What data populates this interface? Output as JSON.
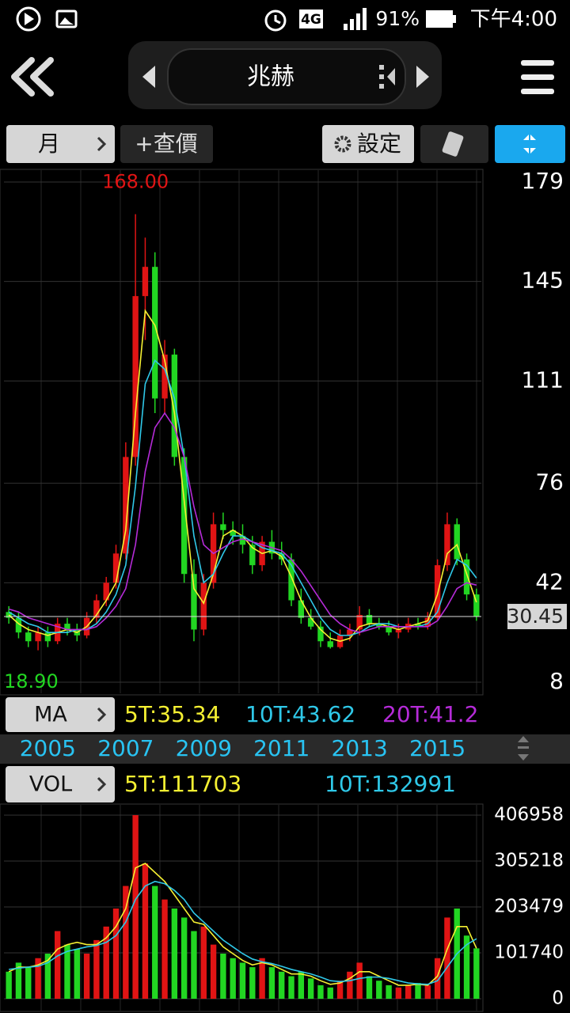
{
  "status_bar": {
    "network": "4G",
    "battery": "91%",
    "time": "下午4:00"
  },
  "header": {
    "title": "兆赫"
  },
  "toolbar": {
    "period": "月",
    "query": "+查價",
    "settings": "設定"
  },
  "chart_data": [
    {
      "type": "candlestick",
      "categories": [
        null,
        null,
        null,
        null,
        null,
        null,
        null,
        null,
        null,
        null,
        null,
        null,
        null,
        null,
        null,
        null,
        null,
        null,
        null,
        null,
        null,
        null,
        null,
        null,
        null,
        null,
        null,
        null,
        null,
        null,
        null,
        null,
        null,
        null,
        null,
        null,
        null,
        null,
        null,
        null,
        null,
        null,
        null,
        null,
        null,
        null,
        null,
        null,
        null
      ],
      "open": [
        32,
        30,
        25,
        22,
        25,
        22,
        28,
        26,
        24,
        30,
        36,
        42,
        52,
        85,
        140,
        150,
        105,
        120,
        85,
        45,
        26,
        42,
        62,
        60,
        58,
        55,
        48,
        56,
        52,
        50,
        36,
        30,
        27,
        22,
        20,
        24,
        26,
        31,
        28,
        27,
        25,
        26,
        28,
        27,
        30,
        48,
        62,
        50,
        38
      ],
      "high": [
        34,
        32,
        27,
        27,
        27,
        30,
        30,
        28,
        32,
        38,
        44,
        55,
        90,
        168,
        160,
        155,
        125,
        122,
        88,
        50,
        45,
        66,
        66,
        63,
        62,
        58,
        58,
        60,
        56,
        52,
        40,
        33,
        29,
        25,
        26,
        28,
        34,
        33,
        30,
        29,
        28,
        30,
        30,
        32,
        50,
        66,
        64,
        52,
        40
      ],
      "low": [
        28,
        23,
        20,
        18.9,
        20,
        21,
        24,
        22,
        23,
        28,
        34,
        40,
        50,
        82,
        125,
        100,
        100,
        82,
        42,
        22,
        24,
        40,
        57,
        55,
        52,
        45,
        46,
        50,
        48,
        34,
        28,
        26,
        20,
        19.5,
        19.5,
        22,
        24,
        27,
        26,
        24,
        23,
        25,
        26,
        26,
        29,
        46,
        48,
        36,
        29
      ],
      "close": [
        30,
        25,
        22,
        25,
        22,
        28,
        26,
        24,
        30,
        36,
        42,
        52,
        85,
        140,
        150,
        105,
        120,
        85,
        45,
        26,
        42,
        62,
        60,
        58,
        55,
        48,
        56,
        52,
        50,
        36,
        30,
        27,
        22,
        20,
        24,
        26,
        31,
        28,
        27,
        25,
        26,
        28,
        27,
        30,
        48,
        62,
        50,
        38,
        30.45
      ],
      "indicator": "MA",
      "series": [
        {
          "name": "5T:35.34",
          "color": "#f5f032",
          "values": [
            31,
            28,
            26,
            25,
            24,
            25,
            26,
            25,
            27,
            31,
            36,
            42,
            60,
            100,
            135,
            130,
            118,
            100,
            70,
            40,
            35,
            45,
            58,
            60,
            58,
            54,
            52,
            53,
            51,
            44,
            36,
            30,
            26,
            23,
            22,
            23,
            27,
            28,
            28,
            27,
            26,
            27,
            28,
            29,
            38,
            52,
            55,
            45,
            35.34
          ]
        },
        {
          "name": "10T:43.62",
          "color": "#2fc8e8",
          "values": [
            32,
            30,
            28,
            27,
            25,
            25,
            25,
            26,
            26,
            28,
            32,
            38,
            48,
            75,
            110,
            118,
            115,
            105,
            85,
            58,
            42,
            45,
            52,
            58,
            58,
            56,
            54,
            53,
            52,
            48,
            42,
            36,
            30,
            26,
            24,
            24,
            25,
            27,
            28,
            28,
            27,
            27,
            27,
            28,
            32,
            42,
            50,
            48,
            43.62
          ]
        },
        {
          "name": "20T:41.2",
          "color": "#b52bd8",
          "values": [
            33,
            32,
            30,
            29,
            28,
            27,
            26,
            26,
            26,
            27,
            30,
            34,
            40,
            55,
            80,
            95,
            100,
            95,
            85,
            68,
            55,
            52,
            54,
            56,
            57,
            56,
            55,
            54,
            53,
            50,
            46,
            41,
            36,
            31,
            28,
            26,
            25,
            26,
            27,
            27,
            27,
            27,
            27,
            27,
            29,
            34,
            40,
            42,
            41.2
          ]
        }
      ],
      "ylim": [
        8,
        179
      ],
      "yticks": [
        8,
        42,
        76,
        111,
        145,
        179
      ],
      "xticks": [
        {
          "value": 4,
          "label": "2005"
        },
        {
          "value": 12,
          "label": "2007"
        },
        {
          "value": 20,
          "label": "2009"
        },
        {
          "value": 28,
          "label": "2011"
        },
        {
          "value": 36,
          "label": "2013"
        },
        {
          "value": 44,
          "label": "2015"
        }
      ],
      "annotations": [
        {
          "value": 168,
          "label": "168.00"
        },
        {
          "value": 18.9,
          "label": "18.90"
        },
        {
          "value": 30.45,
          "label": "30.45"
        }
      ],
      "up_color": "#e01414",
      "down_color": "#22d622",
      "grid": true
    },
    {
      "type": "volume",
      "indicator": "VOL",
      "values": [
        60000,
        80000,
        70000,
        90000,
        100000,
        150000,
        120000,
        110000,
        100000,
        130000,
        160000,
        200000,
        250000,
        406958,
        300000,
        250000,
        220000,
        200000,
        180000,
        150000,
        160000,
        120000,
        100000,
        90000,
        80000,
        70000,
        90000,
        70000,
        60000,
        50000,
        60000,
        45000,
        30000,
        25000,
        40000,
        60000,
        80000,
        50000,
        40000,
        30000,
        25000,
        30000,
        35000,
        30000,
        90000,
        180000,
        200000,
        140000,
        111703
      ],
      "series": [
        {
          "name": "5T:111703",
          "color": "#f5f032",
          "values": [
            60000,
            70000,
            70000,
            75000,
            85000,
            110000,
            120000,
            125000,
            120000,
            120000,
            135000,
            160000,
            200000,
            290000,
            300000,
            280000,
            260000,
            230000,
            200000,
            170000,
            165000,
            140000,
            115000,
            100000,
            85000,
            75000,
            80000,
            75000,
            65000,
            55000,
            55000,
            50000,
            40000,
            32000,
            35000,
            45000,
            60000,
            60000,
            50000,
            40000,
            30000,
            30000,
            32000,
            30000,
            50000,
            110000,
            160000,
            160000,
            111703
          ]
        },
        {
          "name": "10T:132991",
          "color": "#2fc8e8",
          "values": [
            65000,
            68000,
            70000,
            72000,
            80000,
            95000,
            105000,
            110000,
            115000,
            118000,
            125000,
            140000,
            170000,
            220000,
            250000,
            260000,
            255000,
            240000,
            220000,
            190000,
            170000,
            150000,
            130000,
            115000,
            100000,
            88000,
            82000,
            78000,
            72000,
            65000,
            60000,
            55000,
            48000,
            40000,
            38000,
            40000,
            45000,
            48000,
            48000,
            45000,
            40000,
            35000,
            33000,
            32000,
            40000,
            70000,
            100000,
            120000,
            132991
          ]
        }
      ],
      "ylim": [
        0,
        406958
      ],
      "yticks": [
        0,
        101740,
        203479,
        305218,
        406958
      ],
      "grid": true
    }
  ]
}
